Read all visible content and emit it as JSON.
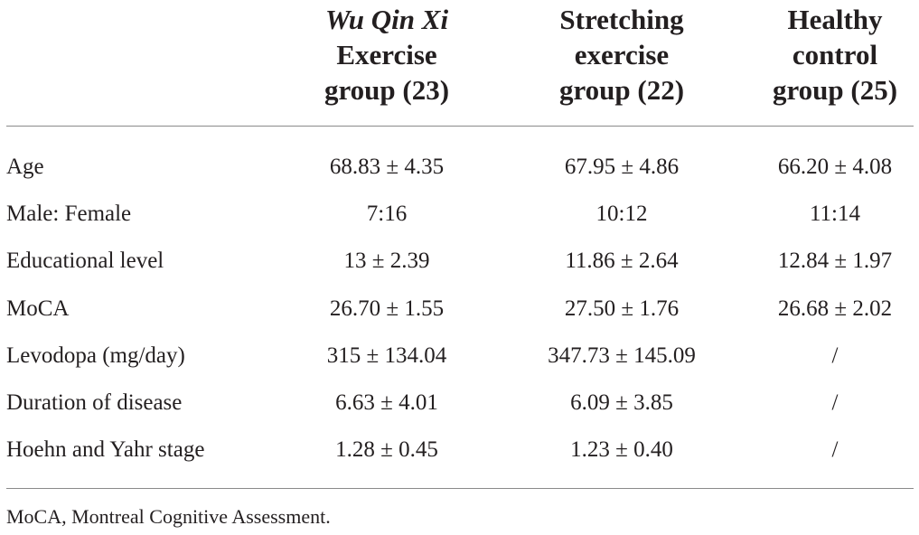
{
  "table": {
    "headers": [
      {
        "line1": "Wu Qin Xi",
        "line2": "Exercise",
        "line3": "group (23)"
      },
      {
        "line1": "Stretching",
        "line2": "exercise",
        "line3": "group (22)"
      },
      {
        "line1": "Healthy",
        "line2": "control",
        "line3": "group (25)"
      }
    ],
    "rows": [
      {
        "label": "Age",
        "values": [
          "68.83 ± 4.35",
          "67.95 ± 4.86",
          "66.20 ± 4.08"
        ]
      },
      {
        "label": "Male: Female",
        "values": [
          "7:16",
          "10:12",
          "11:14"
        ]
      },
      {
        "label": "Educational level",
        "values": [
          "13 ± 2.39",
          "11.86 ± 2.64",
          "12.84 ± 1.97"
        ]
      },
      {
        "label": "MoCA",
        "values": [
          "26.70 ± 1.55",
          "27.50 ± 1.76",
          "26.68 ± 2.02"
        ]
      },
      {
        "label": "Levodopa (mg/day)",
        "values": [
          "315 ± 134.04",
          "347.73 ± 145.09",
          "/"
        ]
      },
      {
        "label": "Duration of disease",
        "values": [
          "6.63 ± 4.01",
          "6.09 ± 3.85",
          "/"
        ]
      },
      {
        "label": "Hoehn and Yahr stage",
        "values": [
          "1.28 ± 0.45",
          "1.23 ± 0.40",
          "/"
        ]
      }
    ],
    "footnote": "MoCA, Montreal Cognitive Assessment."
  }
}
